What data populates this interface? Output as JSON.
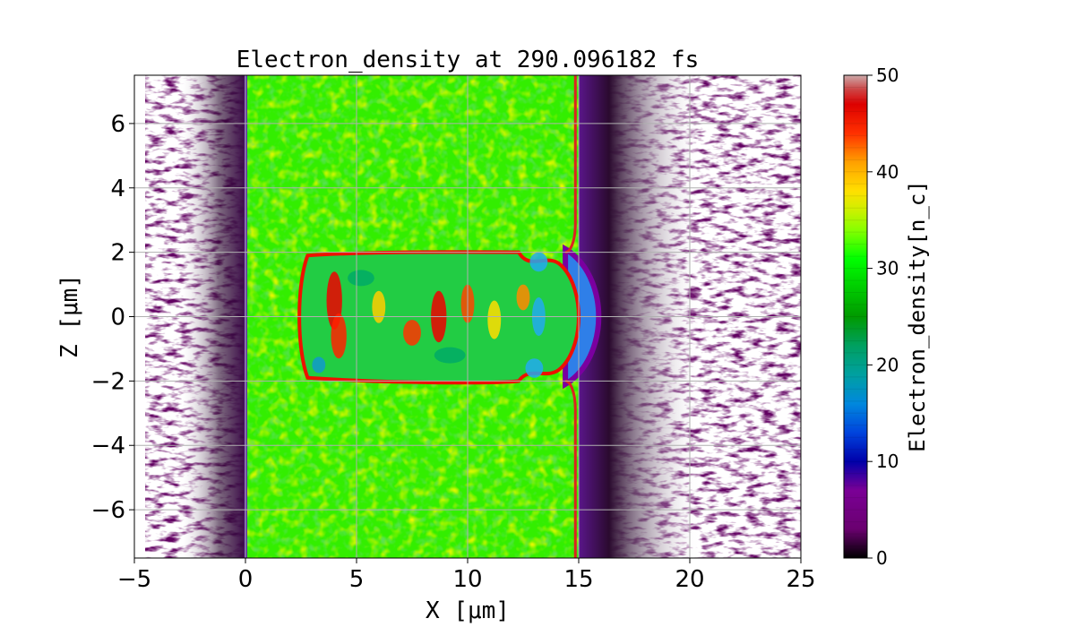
{
  "chart_data": {
    "type": "heatmap",
    "title": "Electron_density at 290.096182 fs",
    "xlabel": "X [μm]",
    "ylabel": "Z [μm]",
    "xlim": [
      -5,
      25
    ],
    "ylim": [
      -7.5,
      7.5
    ],
    "x_ticks": [
      -5,
      0,
      5,
      10,
      15,
      20,
      25
    ],
    "x_tick_labels": [
      "−5",
      "0",
      "5",
      "10",
      "15",
      "20",
      "25"
    ],
    "y_ticks": [
      -6,
      -4,
      -2,
      0,
      2,
      4,
      6
    ],
    "y_tick_labels": [
      "−6",
      "−4",
      "−2",
      "0",
      "2",
      "4",
      "6"
    ],
    "grid": true,
    "colorbar": {
      "label": "Electron_density[n_c]",
      "range": [
        0,
        50
      ],
      "ticks": [
        0,
        10,
        20,
        30,
        40,
        50
      ],
      "tick_labels": [
        "0",
        "10",
        "20",
        "30",
        "40",
        "50"
      ],
      "colormap": "nipy_spectral-like"
    },
    "regions": [
      {
        "name": "target slab",
        "x": [
          0,
          15
        ],
        "z": [
          -7.5,
          7.5
        ],
        "density": 30
      },
      {
        "name": "cavity",
        "x": [
          2.5,
          14.5
        ],
        "z": [
          -2,
          2
        ],
        "density": 25
      },
      {
        "name": "rear bulge",
        "x": [
          14.5,
          15.8
        ],
        "z": [
          -2,
          2
        ],
        "density": 8
      },
      {
        "name": "front expansion",
        "x": [
          -5,
          0
        ],
        "density_range": [
          0,
          5
        ]
      },
      {
        "name": "rear expansion",
        "x": [
          15,
          25
        ],
        "density_range": [
          0,
          5
        ]
      }
    ]
  }
}
